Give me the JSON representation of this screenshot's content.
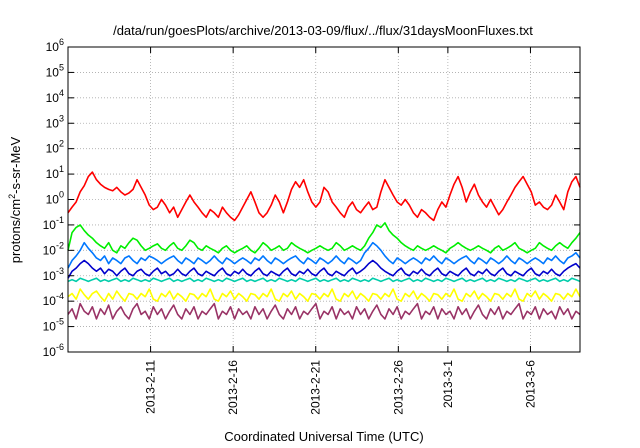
{
  "chart_data": {
    "type": "line",
    "title": "/data/run/goesPlots/archive/2013-03-09/flux/../flux/31daysMoonFluxes.txt",
    "xlabel": "Coordinated Universal Time (UTC)",
    "ylabel_prefix": "protons/cm",
    "ylabel_sup": "2",
    "ylabel_suffix": "-s-sr-MeV",
    "y_scale": "log",
    "ylim": [
      1e-06,
      1000000.0
    ],
    "y_ticks": [
      {
        "base": "10",
        "exp": "-6"
      },
      {
        "base": "10",
        "exp": "-5"
      },
      {
        "base": "10",
        "exp": "-4"
      },
      {
        "base": "10",
        "exp": "-3"
      },
      {
        "base": "10",
        "exp": "-2"
      },
      {
        "base": "10",
        "exp": "-1"
      },
      {
        "base": "10",
        "exp": "0"
      },
      {
        "base": "10",
        "exp": "1"
      },
      {
        "base": "10",
        "exp": "2"
      },
      {
        "base": "10",
        "exp": "3"
      },
      {
        "base": "10",
        "exp": "4"
      },
      {
        "base": "10",
        "exp": "5"
      },
      {
        "base": "10",
        "exp": "6"
      }
    ],
    "xlim": [
      "2013-02-06",
      "2013-03-09"
    ],
    "x_ticks": [
      "2013-2-11",
      "2013-2-16",
      "2013-2-21",
      "2013-2-26",
      "2013-3-1",
      "2013-3-6"
    ],
    "x_tick_dates": [
      "2013-02-11",
      "2013-02-16",
      "2013-02-21",
      "2013-02-26",
      "2013-03-01",
      "2013-03-06"
    ],
    "grid": true,
    "series": [
      {
        "color": "#ff0000",
        "values": [
          0.3,
          0.5,
          0.8,
          2.0,
          3.5,
          8.0,
          12.0,
          6.0,
          4.0,
          3.0,
          2.5,
          2.2,
          3.0,
          2.0,
          1.5,
          1.8,
          2.5,
          6.0,
          3.0,
          1.5,
          0.6,
          0.4,
          0.5,
          1.0,
          0.6,
          0.3,
          0.5,
          0.2,
          0.4,
          0.8,
          1.5,
          0.8,
          0.5,
          0.3,
          0.2,
          0.4,
          0.3,
          0.2,
          0.5,
          0.3,
          0.2,
          0.15,
          0.25,
          0.5,
          1.0,
          2.0,
          0.8,
          0.3,
          0.2,
          0.3,
          0.6,
          1.5,
          0.8,
          0.3,
          0.8,
          2.5,
          5.0,
          3.0,
          6.0,
          2.0,
          0.8,
          0.5,
          0.8,
          3.0,
          2.0,
          0.8,
          0.5,
          0.3,
          0.2,
          0.5,
          0.8,
          0.4,
          0.3,
          0.5,
          0.8,
          0.4,
          0.5,
          2.0,
          6.0,
          3.0,
          1.5,
          0.8,
          0.6,
          1.0,
          0.6,
          0.3,
          0.2,
          0.4,
          0.3,
          0.2,
          0.15,
          0.4,
          0.8,
          0.5,
          1.5,
          4.0,
          8.0,
          3.0,
          0.8,
          2.0,
          4.0,
          1.5,
          0.8,
          0.5,
          1.0,
          0.5,
          0.25,
          0.4,
          0.8,
          1.5,
          3.0,
          5.0,
          8.0,
          4.0,
          2.0,
          0.6,
          0.8,
          0.5,
          0.4,
          0.6,
          1.5,
          0.8,
          0.4,
          2.0,
          5.0,
          8.0,
          3.0
        ]
      },
      {
        "color": "#00ee00",
        "values": [
          0.01,
          0.05,
          0.08,
          0.1,
          0.06,
          0.04,
          0.03,
          0.02,
          0.015,
          0.012,
          0.02,
          0.01,
          0.008,
          0.015,
          0.012,
          0.02,
          0.03,
          0.025,
          0.015,
          0.01,
          0.012,
          0.015,
          0.018,
          0.012,
          0.01,
          0.015,
          0.02,
          0.012,
          0.01,
          0.015,
          0.025,
          0.02,
          0.012,
          0.01,
          0.015,
          0.012,
          0.01,
          0.008,
          0.012,
          0.015,
          0.01,
          0.008,
          0.01,
          0.012,
          0.015,
          0.01,
          0.008,
          0.012,
          0.02,
          0.015,
          0.01,
          0.012,
          0.015,
          0.01,
          0.012,
          0.02,
          0.015,
          0.012,
          0.01,
          0.008,
          0.01,
          0.012,
          0.015,
          0.012,
          0.01,
          0.012,
          0.02,
          0.015,
          0.01,
          0.012,
          0.015,
          0.012,
          0.01,
          0.015,
          0.03,
          0.05,
          0.1,
          0.08,
          0.12,
          0.06,
          0.04,
          0.03,
          0.02,
          0.015,
          0.012,
          0.01,
          0.015,
          0.012,
          0.01,
          0.012,
          0.015,
          0.012,
          0.01,
          0.008,
          0.012,
          0.015,
          0.02,
          0.015,
          0.012,
          0.01,
          0.012,
          0.015,
          0.012,
          0.01,
          0.008,
          0.012,
          0.015,
          0.01,
          0.012,
          0.015,
          0.02,
          0.012,
          0.01,
          0.008,
          0.01,
          0.012,
          0.02,
          0.015,
          0.012,
          0.01,
          0.015,
          0.02,
          0.015,
          0.012,
          0.02,
          0.03,
          0.05
        ]
      },
      {
        "color": "#0077ff",
        "values": [
          0.002,
          0.004,
          0.006,
          0.01,
          0.02,
          0.012,
          0.008,
          0.005,
          0.004,
          0.006,
          0.003,
          0.005,
          0.004,
          0.003,
          0.005,
          0.006,
          0.004,
          0.003,
          0.005,
          0.004,
          0.006,
          0.005,
          0.004,
          0.003,
          0.004,
          0.005,
          0.006,
          0.004,
          0.003,
          0.005,
          0.004,
          0.003,
          0.005,
          0.004,
          0.003,
          0.004,
          0.006,
          0.004,
          0.003,
          0.005,
          0.004,
          0.003,
          0.004,
          0.005,
          0.004,
          0.003,
          0.005,
          0.004,
          0.006,
          0.004,
          0.003,
          0.005,
          0.004,
          0.003,
          0.004,
          0.005,
          0.006,
          0.004,
          0.003,
          0.005,
          0.004,
          0.003,
          0.005,
          0.004,
          0.003,
          0.004,
          0.006,
          0.004,
          0.003,
          0.005,
          0.004,
          0.003,
          0.004,
          0.008,
          0.012,
          0.02,
          0.015,
          0.01,
          0.006,
          0.004,
          0.003,
          0.005,
          0.004,
          0.003,
          0.004,
          0.005,
          0.004,
          0.003,
          0.005,
          0.004,
          0.006,
          0.004,
          0.003,
          0.005,
          0.004,
          0.003,
          0.004,
          0.005,
          0.006,
          0.004,
          0.003,
          0.005,
          0.004,
          0.003,
          0.005,
          0.004,
          0.003,
          0.004,
          0.006,
          0.004,
          0.003,
          0.005,
          0.004,
          0.003,
          0.004,
          0.005,
          0.004,
          0.003,
          0.005,
          0.004,
          0.006,
          0.004,
          0.003,
          0.005,
          0.006,
          0.008,
          0.005
        ]
      },
      {
        "color": "#0000cc",
        "values": [
          0.0008,
          0.0015,
          0.002,
          0.003,
          0.004,
          0.003,
          0.002,
          0.0015,
          0.002,
          0.0012,
          0.0018,
          0.0015,
          0.001,
          0.0015,
          0.002,
          0.0012,
          0.001,
          0.0015,
          0.0018,
          0.0012,
          0.001,
          0.0015,
          0.002,
          0.0012,
          0.0015,
          0.001,
          0.0012,
          0.0018,
          0.0012,
          0.001,
          0.0015,
          0.002,
          0.0012,
          0.001,
          0.0015,
          0.0012,
          0.001,
          0.0015,
          0.002,
          0.0012,
          0.001,
          0.0015,
          0.0012,
          0.0018,
          0.0012,
          0.001,
          0.0015,
          0.002,
          0.0012,
          0.001,
          0.0015,
          0.0012,
          0.001,
          0.0015,
          0.002,
          0.0012,
          0.001,
          0.0015,
          0.0012,
          0.0018,
          0.0012,
          0.001,
          0.0015,
          0.002,
          0.0012,
          0.001,
          0.0015,
          0.0012,
          0.001,
          0.0015,
          0.002,
          0.0012,
          0.0015,
          0.002,
          0.003,
          0.004,
          0.003,
          0.002,
          0.0015,
          0.0012,
          0.001,
          0.0015,
          0.002,
          0.0012,
          0.001,
          0.0015,
          0.0012,
          0.0018,
          0.0012,
          0.001,
          0.0015,
          0.002,
          0.0012,
          0.001,
          0.0015,
          0.0012,
          0.001,
          0.0015,
          0.002,
          0.0012,
          0.001,
          0.0015,
          0.0012,
          0.0018,
          0.0012,
          0.001,
          0.0015,
          0.002,
          0.0012,
          0.001,
          0.0015,
          0.0012,
          0.001,
          0.0015,
          0.002,
          0.0012,
          0.001,
          0.0015,
          0.0012,
          0.0018,
          0.0012,
          0.001,
          0.0015,
          0.002,
          0.0025,
          0.003,
          0.002
        ]
      },
      {
        "color": "#00ccaa",
        "values": [
          0.0006,
          0.0007,
          0.0006,
          0.0008,
          0.0007,
          0.0006,
          0.0007,
          0.0008,
          0.0006,
          0.0007,
          0.0006,
          0.0007,
          0.0008,
          0.0006,
          0.0007,
          0.0006,
          0.0008,
          0.0007,
          0.0006,
          0.0007,
          0.0006,
          0.0008,
          0.0007,
          0.0006,
          0.0007,
          0.0008,
          0.0006,
          0.0007,
          0.0006,
          0.0007,
          0.0008,
          0.0006,
          0.0007,
          0.0006,
          0.0008,
          0.0007,
          0.0006,
          0.0007,
          0.0006,
          0.0008,
          0.0007,
          0.0006,
          0.0007,
          0.0008,
          0.0006,
          0.0007,
          0.0006,
          0.0007,
          0.0008,
          0.0006,
          0.0007,
          0.0006,
          0.0008,
          0.0007,
          0.0006,
          0.0007,
          0.0006,
          0.0008,
          0.0007,
          0.0006,
          0.0007,
          0.0008,
          0.0006,
          0.0007,
          0.0006,
          0.0007,
          0.0008,
          0.0006,
          0.0007,
          0.0006,
          0.0008,
          0.0007,
          0.0006,
          0.0007,
          0.0006,
          0.0008,
          0.0007,
          0.0006,
          0.0007,
          0.0008,
          0.0006,
          0.0007,
          0.0006,
          0.0007,
          0.0008,
          0.0006,
          0.0007,
          0.0006,
          0.0008,
          0.0007,
          0.0006,
          0.0007,
          0.0006,
          0.0008,
          0.0007,
          0.0006,
          0.0007,
          0.0008,
          0.0006,
          0.0007,
          0.0006,
          0.0007,
          0.0008,
          0.0006,
          0.0007,
          0.0006,
          0.0008,
          0.0007,
          0.0006,
          0.0007,
          0.0006,
          0.0008,
          0.0007,
          0.0006,
          0.0007,
          0.0008,
          0.0006,
          0.0007,
          0.0006,
          0.0007,
          0.0008,
          0.0006,
          0.0007,
          0.0006,
          0.0008,
          0.0007,
          0.0006
        ]
      },
      {
        "color": "#ffff00",
        "values": [
          0.00015,
          0.0002,
          0.00012,
          0.0003,
          0.00018,
          0.00012,
          0.0002,
          0.00025,
          0.00015,
          0.0001,
          0.0002,
          0.00012,
          0.00025,
          0.00015,
          0.0001,
          0.0002,
          0.00018,
          0.00012,
          0.0002,
          0.00015,
          0.0003,
          0.00012,
          0.0001,
          0.0002,
          0.00015,
          0.00025,
          0.00012,
          0.0002,
          0.00015,
          0.0001,
          0.0002,
          0.00018,
          0.00012,
          0.0002,
          0.00015,
          0.0003,
          0.00012,
          0.0001,
          0.0002,
          0.00015,
          0.00025,
          0.00012,
          0.0002,
          0.00015,
          0.0001,
          0.0002,
          0.00018,
          0.00012,
          0.0002,
          0.00015,
          0.0003,
          0.00012,
          0.0001,
          0.0002,
          0.00015,
          0.00025,
          0.00012,
          0.0002,
          0.00015,
          0.0001,
          0.0002,
          0.00018,
          0.00012,
          0.0002,
          0.00015,
          0.0003,
          0.00012,
          0.0001,
          0.0002,
          0.00015,
          0.00025,
          0.00012,
          0.0002,
          0.00015,
          0.0001,
          0.0002,
          0.00018,
          0.00012,
          0.0002,
          0.00015,
          0.0003,
          0.00012,
          0.0001,
          0.0002,
          0.00015,
          0.00025,
          0.00012,
          0.0002,
          0.00015,
          0.0001,
          0.0002,
          0.00018,
          0.00012,
          0.0002,
          0.00015,
          0.0003,
          0.00012,
          0.0001,
          0.0002,
          0.00015,
          0.00025,
          0.00012,
          0.0002,
          0.00015,
          0.0001,
          0.0002,
          0.00018,
          0.00012,
          0.0002,
          0.00015,
          0.0003,
          0.00012,
          0.0001,
          0.0002,
          0.00015,
          0.00025,
          0.00012,
          0.0002,
          0.00015,
          0.0001,
          0.0002,
          0.00018,
          0.00012,
          0.0002,
          0.00015,
          0.0003,
          0.00015
        ]
      },
      {
        "color": "#993366",
        "values": [
          3e-05,
          5e-05,
          2e-05,
          8e-05,
          4e-05,
          3e-05,
          6e-05,
          2e-05,
          5e-05,
          3e-05,
          7e-05,
          2e-05,
          4e-05,
          6e-05,
          3e-05,
          2e-05,
          5e-05,
          8e-05,
          3e-05,
          4e-05,
          2e-05,
          6e-05,
          3e-05,
          5e-05,
          2e-05,
          4e-05,
          7e-05,
          3e-05,
          2e-05,
          5e-05,
          3e-05,
          6e-05,
          2e-05,
          4e-05,
          3e-05,
          5e-05,
          8e-05,
          2e-05,
          4e-05,
          3e-05,
          6e-05,
          2e-05,
          5e-05,
          3e-05,
          4e-05,
          2e-05,
          6e-05,
          3e-05,
          5e-05,
          2e-05,
          4e-05,
          7e-05,
          3e-05,
          2e-05,
          5e-05,
          3e-05,
          6e-05,
          2e-05,
          4e-05,
          3e-05,
          5e-05,
          8e-05,
          2e-05,
          4e-05,
          3e-05,
          6e-05,
          2e-05,
          5e-05,
          3e-05,
          4e-05,
          2e-05,
          6e-05,
          3e-05,
          5e-05,
          2e-05,
          4e-05,
          7e-05,
          3e-05,
          2e-05,
          5e-05,
          3e-05,
          6e-05,
          2e-05,
          4e-05,
          3e-05,
          5e-05,
          8e-05,
          2e-05,
          4e-05,
          3e-05,
          6e-05,
          2e-05,
          5e-05,
          3e-05,
          4e-05,
          2e-05,
          6e-05,
          3e-05,
          5e-05,
          2e-05,
          4e-05,
          7e-05,
          3e-05,
          2e-05,
          5e-05,
          3e-05,
          6e-05,
          2e-05,
          4e-05,
          3e-05,
          5e-05,
          8e-05,
          2e-05,
          4e-05,
          3e-05,
          6e-05,
          2e-05,
          5e-05,
          3e-05,
          4e-05,
          2e-05,
          6e-05,
          3e-05,
          5e-05,
          2e-05,
          4e-05,
          3e-05
        ]
      }
    ]
  }
}
